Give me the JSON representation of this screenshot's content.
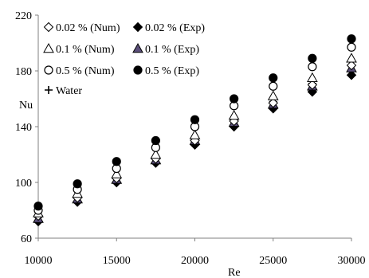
{
  "chart_data": {
    "type": "scatter",
    "title": "",
    "xlabel": "Re",
    "ylabel": "Nu",
    "xlim": [
      10000,
      30000
    ],
    "ylim": [
      60,
      220
    ],
    "xticks": [
      "10000",
      "15000",
      "20000",
      "25000",
      "30000"
    ],
    "yticks": [
      "60",
      "100",
      "140",
      "180",
      "220"
    ],
    "grid": false,
    "legend_position": "top-left",
    "x": [
      10000,
      12500,
      15000,
      17500,
      20000,
      22500,
      25000,
      27500,
      30000
    ],
    "series": [
      {
        "name": "0.02 % (Num)",
        "marker": "diamond-open",
        "values": [
          76,
          89,
          103,
          117,
          130,
          144,
          157,
          170,
          184
        ]
      },
      {
        "name": "0.02 % (Exp)",
        "marker": "diamond-filled",
        "values": [
          72,
          86,
          100,
          114,
          127,
          140,
          153,
          165,
          177
        ]
      },
      {
        "name": "0.1 % (Num)",
        "marker": "triangle-open",
        "values": [
          78,
          92,
          106,
          120,
          134,
          148,
          162,
          175,
          189
        ]
      },
      {
        "name": "0.1 % (Exp)",
        "marker": "triangle-filled",
        "values": [
          74,
          88,
          102,
          116,
          130,
          143,
          156,
          169,
          182
        ]
      },
      {
        "name": "0.5 % (Num)",
        "marker": "circle-open",
        "values": [
          80,
          95,
          110,
          125,
          140,
          155,
          169,
          183,
          197
        ]
      },
      {
        "name": "0.5 % (Exp)",
        "marker": "circle-filled",
        "values": [
          83,
          99,
          115,
          130,
          145,
          160,
          175,
          189,
          203
        ]
      },
      {
        "name": "Water",
        "marker": "plus",
        "values": [
          75,
          89,
          103,
          117,
          131,
          145,
          158,
          171,
          184
        ]
      }
    ],
    "colors": {
      "marker": "#000000",
      "triangle_fill": "#5b4f7a",
      "axis": "#808080"
    }
  }
}
